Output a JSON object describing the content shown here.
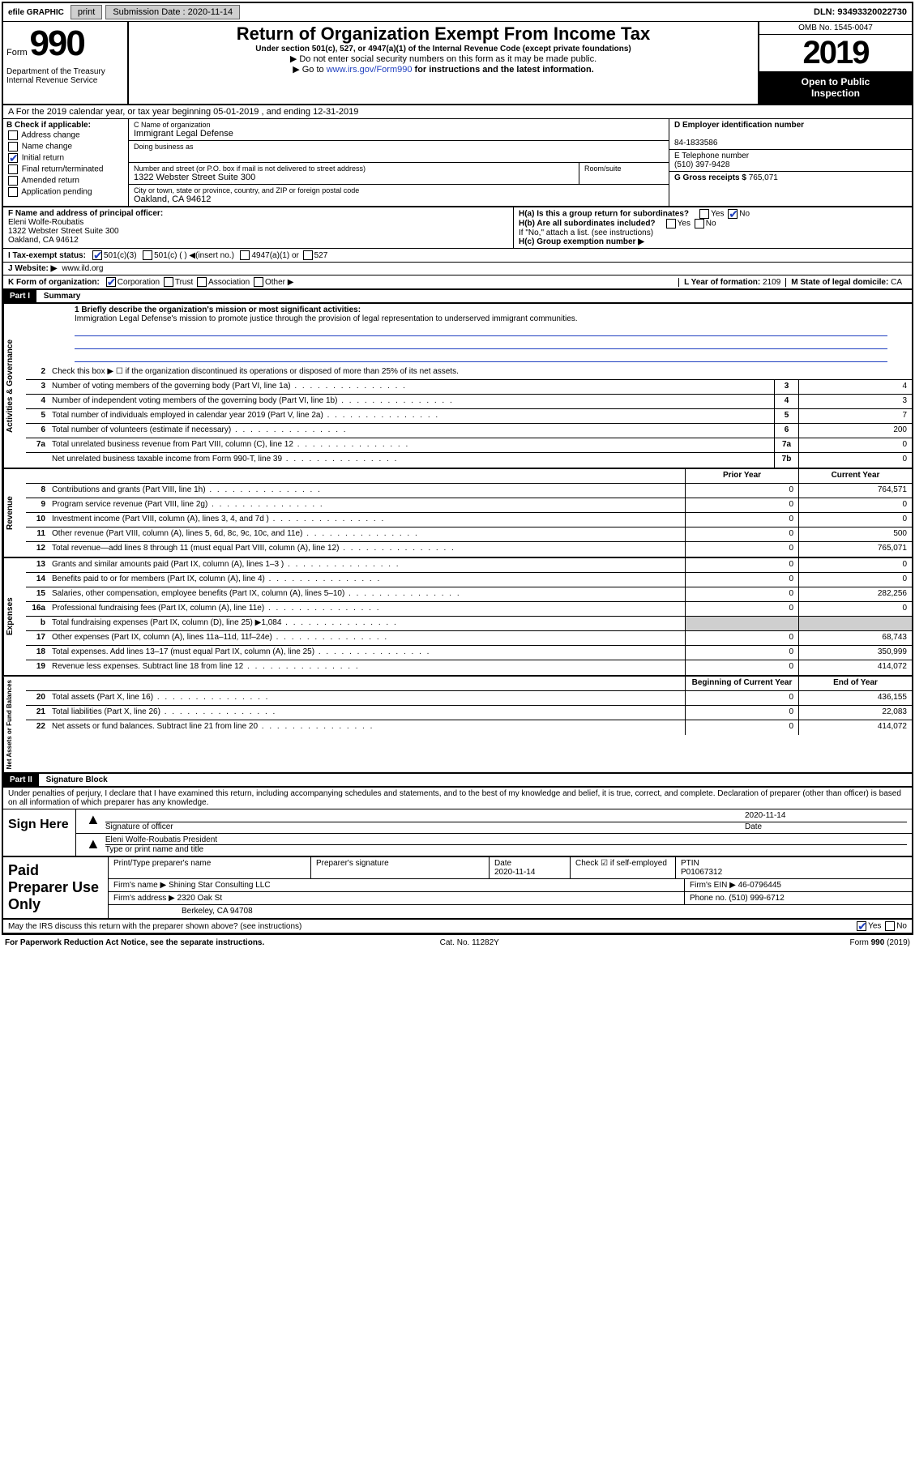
{
  "topbar": {
    "efile": "efile GRAPHIC",
    "print": "print",
    "subdate_lbl": "Submission Date :",
    "subdate": "2020-11-14",
    "dln": "DLN: 93493320022730"
  },
  "header": {
    "form": "Form",
    "num": "990",
    "dept": "Department of the Treasury Internal Revenue Service",
    "title": "Return of Organization Exempt From Income Tax",
    "sub1": "Under section 501(c), 527, or 4947(a)(1) of the Internal Revenue Code (except private foundations)",
    "sub2": "▶ Do not enter social security numbers on this form as it may be made public.",
    "sub3_pre": "▶ Go to ",
    "sub3_link": "www.irs.gov/Form990",
    "sub3_post": " for instructions and the latest information.",
    "omb": "OMB No. 1545-0047",
    "year": "2019",
    "pub1": "Open to Public",
    "pub2": "Inspection"
  },
  "secA": "A For the 2019 calendar year, or tax year beginning 05-01-2019   , and ending 12-31-2019",
  "secB": {
    "lbl": "B Check if applicable:",
    "addr": "Address change",
    "name": "Name change",
    "init": "Initial return",
    "final": "Final return/terminated",
    "amend": "Amended return",
    "app": "Application pending"
  },
  "secC": {
    "name_lbl": "C Name of organization",
    "name": "Immigrant Legal Defense",
    "dba_lbl": "Doing business as",
    "street_lbl": "Number and street (or P.O. box if mail is not delivered to street address)",
    "room_lbl": "Room/suite",
    "street": "1322 Webster Street Suite 300",
    "city_lbl": "City or town, state or province, country, and ZIP or foreign postal code",
    "city": "Oakland, CA  94612"
  },
  "secD": {
    "lbl": "D Employer identification number",
    "val": "84-1833586"
  },
  "secE": {
    "lbl": "E Telephone number",
    "val": "(510) 397-9428"
  },
  "secG": {
    "lbl": "G Gross receipts $",
    "val": "765,071"
  },
  "secF": {
    "lbl": "F  Name and address of principal officer:",
    "name": "Eleni Wolfe-Roubatis",
    "addr1": "1322 Webster Street Suite 300",
    "addr2": "Oakland, CA  94612"
  },
  "secH": {
    "a": "H(a)  Is this a group return for subordinates?",
    "b": "H(b)  Are all subordinates included?",
    "note": "If \"No,\" attach a list. (see instructions)",
    "c": "H(c)  Group exemption number ▶"
  },
  "secI": {
    "lbl": "I  Tax-exempt status:",
    "c3": "501(c)(3)",
    "c": "501(c) (  ) ◀(insert no.)",
    "a1": "4947(a)(1) or",
    "527": "527"
  },
  "secJ": {
    "lbl": "J  Website: ▶",
    "val": "www.ild.org"
  },
  "secK": {
    "lbl": "K Form of organization:",
    "corp": "Corporation",
    "trust": "Trust",
    "assoc": "Association",
    "other": "Other ▶"
  },
  "secL": {
    "lbl": "L Year of formation:",
    "val": "2109"
  },
  "secM": {
    "lbl": "M State of legal domicile:",
    "val": "CA"
  },
  "part1": {
    "hdr": "Part I",
    "title": "Summary",
    "q1": "1  Briefly describe the organization's mission or most significant activities:",
    "mission": "Immigration Legal Defense's mission to promote justice through the provision of legal representation to underserved immigrant communities.",
    "q2": "Check this box ▶ ☐  if the organization discontinued its operations or disposed of more than 25% of its net assets.",
    "rows_gov": [
      {
        "n": "3",
        "t": "Number of voting members of the governing body (Part VI, line 1a)",
        "box": "3",
        "v": "4"
      },
      {
        "n": "4",
        "t": "Number of independent voting members of the governing body (Part VI, line 1b)",
        "box": "4",
        "v": "3"
      },
      {
        "n": "5",
        "t": "Total number of individuals employed in calendar year 2019 (Part V, line 2a)",
        "box": "5",
        "v": "7"
      },
      {
        "n": "6",
        "t": "Total number of volunteers (estimate if necessary)",
        "box": "6",
        "v": "200"
      },
      {
        "n": "7a",
        "t": "Total unrelated business revenue from Part VIII, column (C), line 12",
        "box": "7a",
        "v": "0"
      },
      {
        "n": "",
        "t": "Net unrelated business taxable income from Form 990-T, line 39",
        "box": "7b",
        "v": "0"
      }
    ],
    "col_hdr_prior": "Prior Year",
    "col_hdr_curr": "Current Year",
    "rows_rev": [
      {
        "n": "8",
        "t": "Contributions and grants (Part VIII, line 1h)",
        "p": "0",
        "c": "764,571"
      },
      {
        "n": "9",
        "t": "Program service revenue (Part VIII, line 2g)",
        "p": "0",
        "c": "0"
      },
      {
        "n": "10",
        "t": "Investment income (Part VIII, column (A), lines 3, 4, and 7d )",
        "p": "0",
        "c": "0"
      },
      {
        "n": "11",
        "t": "Other revenue (Part VIII, column (A), lines 5, 6d, 8c, 9c, 10c, and 11e)",
        "p": "0",
        "c": "500"
      },
      {
        "n": "12",
        "t": "Total revenue—add lines 8 through 11 (must equal Part VIII, column (A), line 12)",
        "p": "0",
        "c": "765,071"
      }
    ],
    "rows_exp": [
      {
        "n": "13",
        "t": "Grants and similar amounts paid (Part IX, column (A), lines 1–3 )",
        "p": "0",
        "c": "0"
      },
      {
        "n": "14",
        "t": "Benefits paid to or for members (Part IX, column (A), line 4)",
        "p": "0",
        "c": "0"
      },
      {
        "n": "15",
        "t": "Salaries, other compensation, employee benefits (Part IX, column (A), lines 5–10)",
        "p": "0",
        "c": "282,256"
      },
      {
        "n": "16a",
        "t": "Professional fundraising fees (Part IX, column (A), line 11e)",
        "p": "0",
        "c": "0"
      },
      {
        "n": "b",
        "t": "Total fundraising expenses (Part IX, column (D), line 25) ▶1,084",
        "p": "",
        "c": "",
        "shade": true
      },
      {
        "n": "17",
        "t": "Other expenses (Part IX, column (A), lines 11a–11d, 11f–24e)",
        "p": "0",
        "c": "68,743"
      },
      {
        "n": "18",
        "t": "Total expenses. Add lines 13–17 (must equal Part IX, column (A), line 25)",
        "p": "0",
        "c": "350,999"
      },
      {
        "n": "19",
        "t": "Revenue less expenses. Subtract line 18 from line 12",
        "p": "0",
        "c": "414,072"
      }
    ],
    "col_hdr_beg": "Beginning of Current Year",
    "col_hdr_end": "End of Year",
    "rows_net": [
      {
        "n": "20",
        "t": "Total assets (Part X, line 16)",
        "p": "0",
        "c": "436,155"
      },
      {
        "n": "21",
        "t": "Total liabilities (Part X, line 26)",
        "p": "0",
        "c": "22,083"
      },
      {
        "n": "22",
        "t": "Net assets or fund balances. Subtract line 21 from line 20",
        "p": "0",
        "c": "414,072"
      }
    ]
  },
  "vlabels": {
    "gov": "Activities & Governance",
    "rev": "Revenue",
    "exp": "Expenses",
    "net": "Net Assets or Fund Balances"
  },
  "part2": {
    "hdr": "Part II",
    "title": "Signature Block",
    "decl": "Under penalties of perjury, I declare that I have examined this return, including accompanying schedules and statements, and to the best of my knowledge and belief, it is true, correct, and complete. Declaration of preparer (other than officer) is based on all information of which preparer has any knowledge."
  },
  "sign": {
    "here": "Sign Here",
    "sig_lbl": "Signature of officer",
    "date_lbl": "Date",
    "date": "2020-11-14",
    "name": "Eleni Wolfe-Roubatis  President",
    "name_lbl": "Type or print name and title"
  },
  "prep": {
    "lbl": "Paid Preparer Use Only",
    "pt_name_lbl": "Print/Type preparer's name",
    "psig_lbl": "Preparer's signature",
    "pdate_lbl": "Date",
    "pdate": "2020-11-14",
    "chk_lbl": "Check ☑ if self-employed",
    "ptin_lbl": "PTIN",
    "ptin": "P01067312",
    "firm_lbl": "Firm's name     ▶",
    "firm": "Shining Star Consulting LLC",
    "ein_lbl": "Firm's EIN ▶",
    "ein": "46-0796445",
    "addr_lbl": "Firm's address ▶",
    "addr1": "2320 Oak St",
    "addr2": "Berkeley, CA  94708",
    "phone_lbl": "Phone no.",
    "phone": "(510) 999-6712"
  },
  "discuss": "May the IRS discuss this return with the preparer shown above? (see instructions)",
  "foot": {
    "l": "For Paperwork Reduction Act Notice, see the separate instructions.",
    "m": "Cat. No. 11282Y",
    "r": "Form 990 (2019)"
  }
}
